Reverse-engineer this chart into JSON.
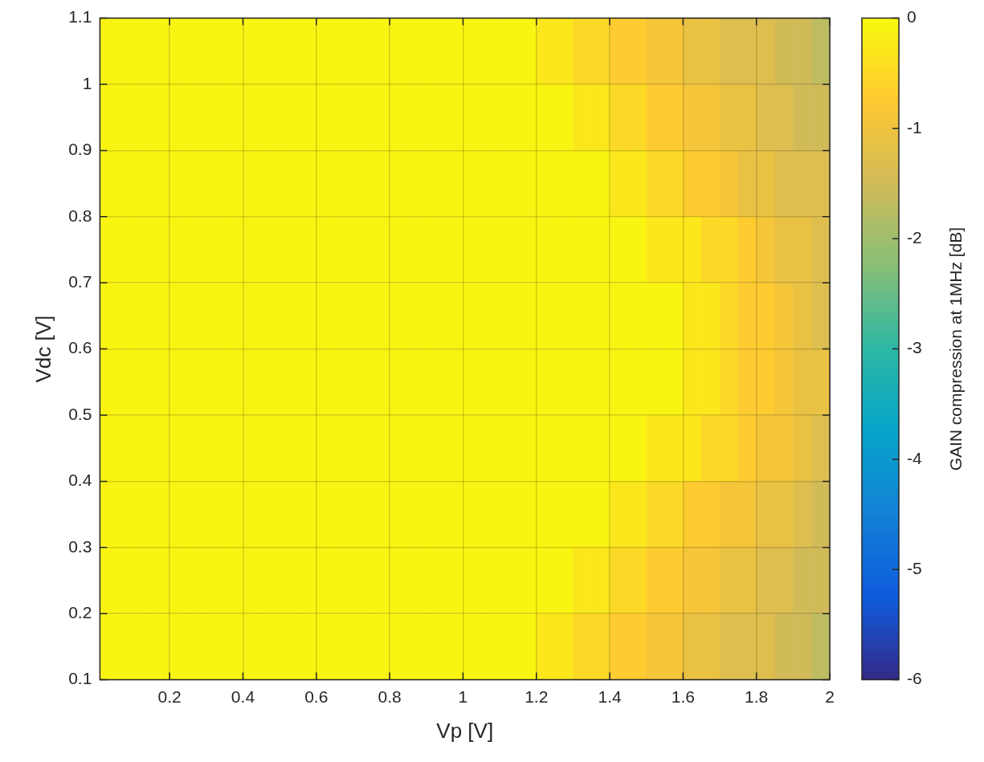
{
  "chart_data": {
    "type": "heatmap",
    "xlabel": "Vp [V]",
    "ylabel": "Vdc [V]",
    "clabel": "GAIN compression at 1MHz [dB]",
    "x": [
      0.025,
      0.075,
      0.125,
      0.175,
      0.225,
      0.275,
      0.325,
      0.375,
      0.425,
      0.475,
      0.525,
      0.575,
      0.625,
      0.675,
      0.725,
      0.775,
      0.825,
      0.875,
      0.925,
      0.975,
      1.025,
      1.075,
      1.125,
      1.175,
      1.225,
      1.275,
      1.325,
      1.375,
      1.425,
      1.475,
      1.525,
      1.575,
      1.625,
      1.675,
      1.725,
      1.775,
      1.825,
      1.875,
      1.925,
      1.975
    ],
    "y": [
      1.05,
      0.95,
      0.85,
      0.75,
      0.65,
      0.55,
      0.45,
      0.35,
      0.25,
      0.15
    ],
    "cells": [
      [
        -0.1,
        -0.1,
        -0.1,
        -0.1,
        -0.1,
        -0.1,
        -0.1,
        -0.1,
        -0.1,
        -0.1,
        -0.1,
        -0.1,
        -0.1,
        -0.1,
        -0.1,
        -0.1,
        -0.1,
        -0.1,
        -0.1,
        -0.1,
        -0.1,
        -0.1,
        -0.1,
        -0.1,
        -0.3,
        -0.3,
        -0.5,
        -0.5,
        -0.7,
        -0.7,
        -0.9,
        -0.9,
        -1.1,
        -1.1,
        -1.3,
        -1.3,
        -1.3,
        -1.5,
        -1.5,
        -1.7
      ],
      [
        -0.1,
        -0.1,
        -0.1,
        -0.1,
        -0.1,
        -0.1,
        -0.1,
        -0.1,
        -0.1,
        -0.1,
        -0.1,
        -0.1,
        -0.1,
        -0.1,
        -0.1,
        -0.1,
        -0.1,
        -0.1,
        -0.1,
        -0.1,
        -0.1,
        -0.1,
        -0.1,
        -0.1,
        -0.1,
        -0.1,
        -0.3,
        -0.3,
        -0.5,
        -0.5,
        -0.7,
        -0.7,
        -0.9,
        -0.9,
        -1.1,
        -1.1,
        -1.3,
        -1.3,
        -1.5,
        -1.5
      ],
      [
        -0.1,
        -0.1,
        -0.1,
        -0.1,
        -0.1,
        -0.1,
        -0.1,
        -0.1,
        -0.1,
        -0.1,
        -0.1,
        -0.1,
        -0.1,
        -0.1,
        -0.1,
        -0.1,
        -0.1,
        -0.1,
        -0.1,
        -0.1,
        -0.1,
        -0.1,
        -0.1,
        -0.1,
        -0.1,
        -0.1,
        -0.1,
        -0.1,
        -0.3,
        -0.3,
        -0.5,
        -0.5,
        -0.7,
        -0.7,
        -0.9,
        -1.1,
        -1.1,
        -1.3,
        -1.3,
        -1.3
      ],
      [
        -0.1,
        -0.1,
        -0.1,
        -0.1,
        -0.1,
        -0.1,
        -0.1,
        -0.1,
        -0.1,
        -0.1,
        -0.1,
        -0.1,
        -0.1,
        -0.1,
        -0.1,
        -0.1,
        -0.1,
        -0.1,
        -0.1,
        -0.1,
        -0.1,
        -0.1,
        -0.1,
        -0.1,
        -0.1,
        -0.1,
        -0.1,
        -0.1,
        -0.1,
        -0.1,
        -0.3,
        -0.3,
        -0.3,
        -0.5,
        -0.5,
        -0.7,
        -0.9,
        -1.1,
        -1.1,
        -1.3
      ],
      [
        -0.1,
        -0.1,
        -0.1,
        -0.1,
        -0.1,
        -0.1,
        -0.1,
        -0.1,
        -0.1,
        -0.1,
        -0.1,
        -0.1,
        -0.1,
        -0.1,
        -0.1,
        -0.1,
        -0.1,
        -0.1,
        -0.1,
        -0.1,
        -0.1,
        -0.1,
        -0.1,
        -0.1,
        -0.1,
        -0.1,
        -0.1,
        -0.1,
        -0.1,
        -0.1,
        -0.1,
        -0.1,
        -0.3,
        -0.3,
        -0.5,
        -0.7,
        -0.7,
        -0.9,
        -1.1,
        -1.3
      ],
      [
        -0.1,
        -0.1,
        -0.1,
        -0.1,
        -0.1,
        -0.1,
        -0.1,
        -0.1,
        -0.1,
        -0.1,
        -0.1,
        -0.1,
        -0.1,
        -0.1,
        -0.1,
        -0.1,
        -0.1,
        -0.1,
        -0.1,
        -0.1,
        -0.1,
        -0.1,
        -0.1,
        -0.1,
        -0.1,
        -0.1,
        -0.1,
        -0.1,
        -0.1,
        -0.1,
        -0.1,
        -0.1,
        -0.3,
        -0.3,
        -0.5,
        -0.7,
        -0.7,
        -0.9,
        -1.1,
        -1.1
      ],
      [
        -0.1,
        -0.1,
        -0.1,
        -0.1,
        -0.1,
        -0.1,
        -0.1,
        -0.1,
        -0.1,
        -0.1,
        -0.1,
        -0.1,
        -0.1,
        -0.1,
        -0.1,
        -0.1,
        -0.1,
        -0.1,
        -0.1,
        -0.1,
        -0.1,
        -0.1,
        -0.1,
        -0.1,
        -0.1,
        -0.1,
        -0.1,
        -0.1,
        -0.1,
        -0.1,
        -0.3,
        -0.3,
        -0.3,
        -0.5,
        -0.5,
        -0.7,
        -0.9,
        -0.9,
        -1.1,
        -1.3
      ],
      [
        -0.1,
        -0.1,
        -0.1,
        -0.1,
        -0.1,
        -0.1,
        -0.1,
        -0.1,
        -0.1,
        -0.1,
        -0.1,
        -0.1,
        -0.1,
        -0.1,
        -0.1,
        -0.1,
        -0.1,
        -0.1,
        -0.1,
        -0.1,
        -0.1,
        -0.1,
        -0.1,
        -0.1,
        -0.1,
        -0.1,
        -0.1,
        -0.1,
        -0.3,
        -0.3,
        -0.5,
        -0.5,
        -0.7,
        -0.7,
        -0.9,
        -0.9,
        -1.1,
        -1.1,
        -1.3,
        -1.5
      ],
      [
        -0.1,
        -0.1,
        -0.1,
        -0.1,
        -0.1,
        -0.1,
        -0.1,
        -0.1,
        -0.1,
        -0.1,
        -0.1,
        -0.1,
        -0.1,
        -0.1,
        -0.1,
        -0.1,
        -0.1,
        -0.1,
        -0.1,
        -0.1,
        -0.1,
        -0.1,
        -0.1,
        -0.1,
        -0.1,
        -0.1,
        -0.3,
        -0.3,
        -0.5,
        -0.5,
        -0.7,
        -0.7,
        -0.9,
        -0.9,
        -1.1,
        -1.1,
        -1.3,
        -1.3,
        -1.5,
        -1.5
      ],
      [
        -0.1,
        -0.1,
        -0.1,
        -0.1,
        -0.1,
        -0.1,
        -0.1,
        -0.1,
        -0.1,
        -0.1,
        -0.1,
        -0.1,
        -0.1,
        -0.1,
        -0.1,
        -0.1,
        -0.1,
        -0.1,
        -0.1,
        -0.1,
        -0.1,
        -0.1,
        -0.1,
        -0.1,
        -0.3,
        -0.3,
        -0.5,
        -0.5,
        -0.7,
        -0.7,
        -0.9,
        -0.9,
        -1.1,
        -1.1,
        -1.3,
        -1.3,
        -1.3,
        -1.5,
        -1.5,
        -1.7
      ]
    ],
    "xlim": [
      0.01,
      2
    ],
    "ylim": [
      0.1,
      1.1
    ],
    "xticks": [
      0.2,
      0.4,
      0.6,
      0.8,
      1,
      1.2,
      1.4,
      1.6,
      1.8,
      2
    ],
    "yticks": [
      0.1,
      0.2,
      0.3,
      0.4,
      0.5,
      0.6,
      0.7,
      0.8,
      0.9,
      1,
      1.1
    ],
    "clim": [
      -6,
      0
    ],
    "cticks": [
      -6,
      -5,
      -4,
      -3,
      -2,
      -1,
      0
    ],
    "grid": true
  }
}
